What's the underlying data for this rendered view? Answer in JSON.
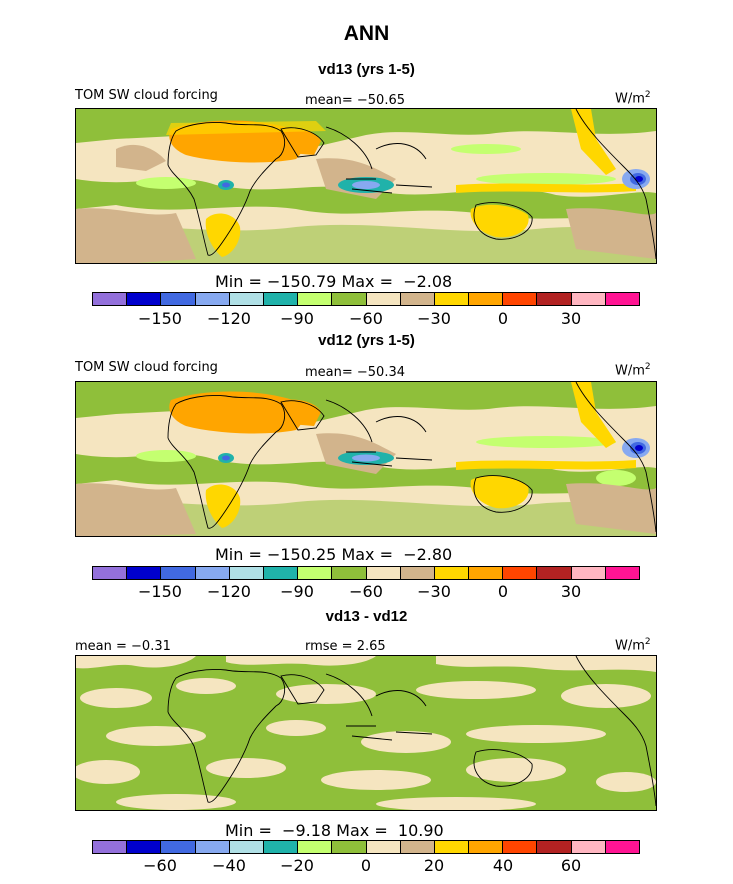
{
  "title": "ANN",
  "colors": {
    "palette": [
      "#9370db",
      "#0000cd",
      "#4169e1",
      "#87a9f0",
      "#b0e0e6",
      "#20b2aa",
      "#c4ff70",
      "#8fbf3a",
      "#f5e5c0",
      "#d2b48c",
      "#ffd700",
      "#ffa500",
      "#ff4500",
      "#b22222",
      "#ffb6c1",
      "#ff1493"
    ],
    "coast": "#000000"
  },
  "panels": [
    {
      "subtitle": "vd13 (yrs 1-5)",
      "header_left": "TOM SW cloud forcing",
      "header_mid": "mean= −50.65",
      "unit_base": "W/m",
      "unit_sup": "2",
      "minmax": "Min = −150.79 Max =  −2.08",
      "tick_labels": [
        "−150",
        "−120",
        "−90",
        "−60",
        "−30",
        "0",
        "30"
      ],
      "map_icon": "world-map-field"
    },
    {
      "subtitle": "vd12 (yrs 1-5)",
      "header_left": "TOM SW cloud forcing",
      "header_mid": "mean= −50.34",
      "unit_base": "W/m",
      "unit_sup": "2",
      "minmax": "Min = −150.25 Max =  −2.80",
      "tick_labels": [
        "−150",
        "−120",
        "−90",
        "−60",
        "−30",
        "0",
        "30"
      ],
      "map_icon": "world-map-field"
    },
    {
      "subtitle": "vd13 - vd12",
      "header_left": "mean =  −0.31",
      "header_mid": "rmse =   2.65",
      "unit_base": "W/m",
      "unit_sup": "2",
      "minmax": "Min =  −9.18 Max =  10.90",
      "tick_labels": [
        "−60",
        "−40",
        "−20",
        "0",
        "20",
        "40",
        "60"
      ],
      "map_icon": "world-map-difference"
    }
  ],
  "chart_data": [
    {
      "type": "heatmap",
      "title": "vd13 (yrs 1-5)",
      "variable": "TOM SW cloud forcing",
      "units": "W/m2",
      "mean": -50.65,
      "min": -150.79,
      "max": -2.08,
      "contour_levels": [
        -165,
        -150,
        -135,
        -120,
        -105,
        -90,
        -75,
        -60,
        -45,
        -30,
        -15,
        0,
        15,
        30,
        45
      ],
      "colorbar_ticks": [
        -150,
        -120,
        -90,
        -60,
        -30,
        0,
        30
      ]
    },
    {
      "type": "heatmap",
      "title": "vd12 (yrs 1-5)",
      "variable": "TOM SW cloud forcing",
      "units": "W/m2",
      "mean": -50.34,
      "min": -150.25,
      "max": -2.8,
      "contour_levels": [
        -165,
        -150,
        -135,
        -120,
        -105,
        -90,
        -75,
        -60,
        -45,
        -30,
        -15,
        0,
        15,
        30,
        45
      ],
      "colorbar_ticks": [
        -150,
        -120,
        -90,
        -60,
        -30,
        0,
        30
      ]
    },
    {
      "type": "heatmap",
      "title": "vd13 - vd12",
      "units": "W/m2",
      "mean": -0.31,
      "rmse": 2.65,
      "min": -9.18,
      "max": 10.9,
      "contour_levels": [
        -70,
        -60,
        -50,
        -40,
        -30,
        -20,
        -10,
        0,
        10,
        20,
        30,
        40,
        50,
        60,
        70
      ],
      "colorbar_ticks": [
        -60,
        -40,
        -20,
        0,
        20,
        40,
        60
      ]
    }
  ]
}
